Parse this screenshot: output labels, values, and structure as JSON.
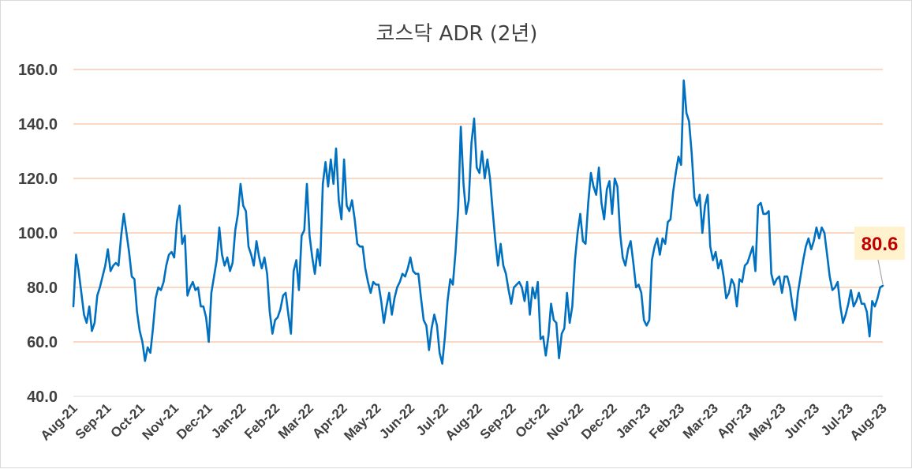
{
  "chart_data": {
    "type": "line",
    "title": "코스닥 ADR (2년)",
    "xlabel": "",
    "ylabel": "",
    "ylim": [
      40,
      160
    ],
    "yticks": [
      "40.0",
      "60.0",
      "80.0",
      "100.0",
      "120.0",
      "140.0",
      "160.0"
    ],
    "ytick_values": [
      40,
      60,
      80,
      100,
      120,
      140,
      160
    ],
    "xticks": [
      "Aug-21",
      "Sep-21",
      "Oct-21",
      "Nov-21",
      "Dec-21",
      "Jan-22",
      "Feb-22",
      "Mar-22",
      "Apr-22",
      "May-22",
      "Jun-22",
      "Jul-22",
      "Aug-22",
      "Sep-22",
      "Oct-22",
      "Nov-22",
      "Dec-22",
      "Jan-23",
      "Feb-23",
      "Mar-23",
      "Apr-23",
      "May-23",
      "Jun-23",
      "Jul-23",
      "Aug-23"
    ],
    "grid": true,
    "legend": "none",
    "colors": {
      "line": "#0070c0",
      "grid": "#f4b183",
      "annotation_fill": "#fff2cc",
      "annotation_text": "#c00000"
    },
    "annotation": {
      "text": "80.6",
      "value": 80.6
    },
    "series": [
      {
        "values": [
          73,
          92,
          86,
          78,
          70,
          67,
          73,
          64,
          67,
          77,
          80,
          84,
          88,
          94,
          86,
          88,
          89,
          88,
          99,
          107,
          100,
          93,
          84,
          83,
          71,
          64,
          60,
          53,
          58,
          56,
          65,
          76,
          80,
          79,
          82,
          88,
          92,
          93,
          91,
          104,
          110,
          96,
          99,
          77,
          80,
          82,
          79,
          80,
          73,
          73,
          69,
          60,
          78,
          84,
          90,
          102,
          92,
          88,
          91,
          86,
          89,
          101,
          107,
          118,
          110,
          108,
          95,
          92,
          88,
          97,
          91,
          87,
          91,
          85,
          71,
          63,
          68,
          69,
          72,
          77,
          78,
          70,
          63,
          86,
          90,
          79,
          99,
          101,
          118,
          99,
          91,
          85,
          94,
          88,
          118,
          126,
          117,
          127,
          118,
          131,
          112,
          105,
          127,
          110,
          108,
          112,
          105,
          96,
          95,
          95,
          87,
          82,
          78,
          82,
          81,
          81,
          75,
          67,
          73,
          78,
          70,
          76,
          80,
          82,
          85,
          84,
          87,
          91,
          86,
          85,
          85,
          76,
          68,
          66,
          57,
          65,
          70,
          66,
          56,
          52,
          62,
          75,
          83,
          81,
          93,
          109,
          139,
          118,
          107,
          112,
          133,
          142,
          124,
          122,
          130,
          120,
          127,
          120,
          108,
          97,
          88,
          96,
          88,
          85,
          79,
          74,
          80,
          81,
          82,
          80,
          75,
          82,
          70,
          80,
          76,
          82,
          61,
          62,
          55,
          62,
          74,
          68,
          67,
          54,
          63,
          65,
          78,
          67,
          73,
          90,
          100,
          107,
          97,
          96,
          111,
          122,
          117,
          114,
          124,
          111,
          105,
          116,
          119,
          107,
          120,
          117,
          100,
          91,
          88,
          94,
          97,
          89,
          80,
          81,
          78,
          68,
          66,
          68,
          90,
          95,
          98,
          92,
          98,
          96,
          104,
          105,
          115,
          122,
          128,
          125,
          156,
          144,
          141,
          129,
          113,
          110,
          114,
          100,
          110,
          114,
          95,
          90,
          93,
          87,
          90,
          84,
          76,
          78,
          83,
          81,
          73,
          83,
          82,
          88,
          89,
          92,
          95,
          86,
          110,
          111,
          107,
          107,
          108,
          85,
          81,
          83,
          84,
          78,
          84,
          84,
          80,
          73,
          68,
          78,
          84,
          90,
          95,
          98,
          94,
          97,
          102,
          98,
          102,
          100,
          92,
          84,
          79,
          80,
          82,
          73,
          67,
          70,
          74,
          79,
          73,
          75,
          78,
          74,
          74,
          71,
          62,
          75,
          73,
          76,
          80,
          80.6
        ]
      }
    ]
  }
}
